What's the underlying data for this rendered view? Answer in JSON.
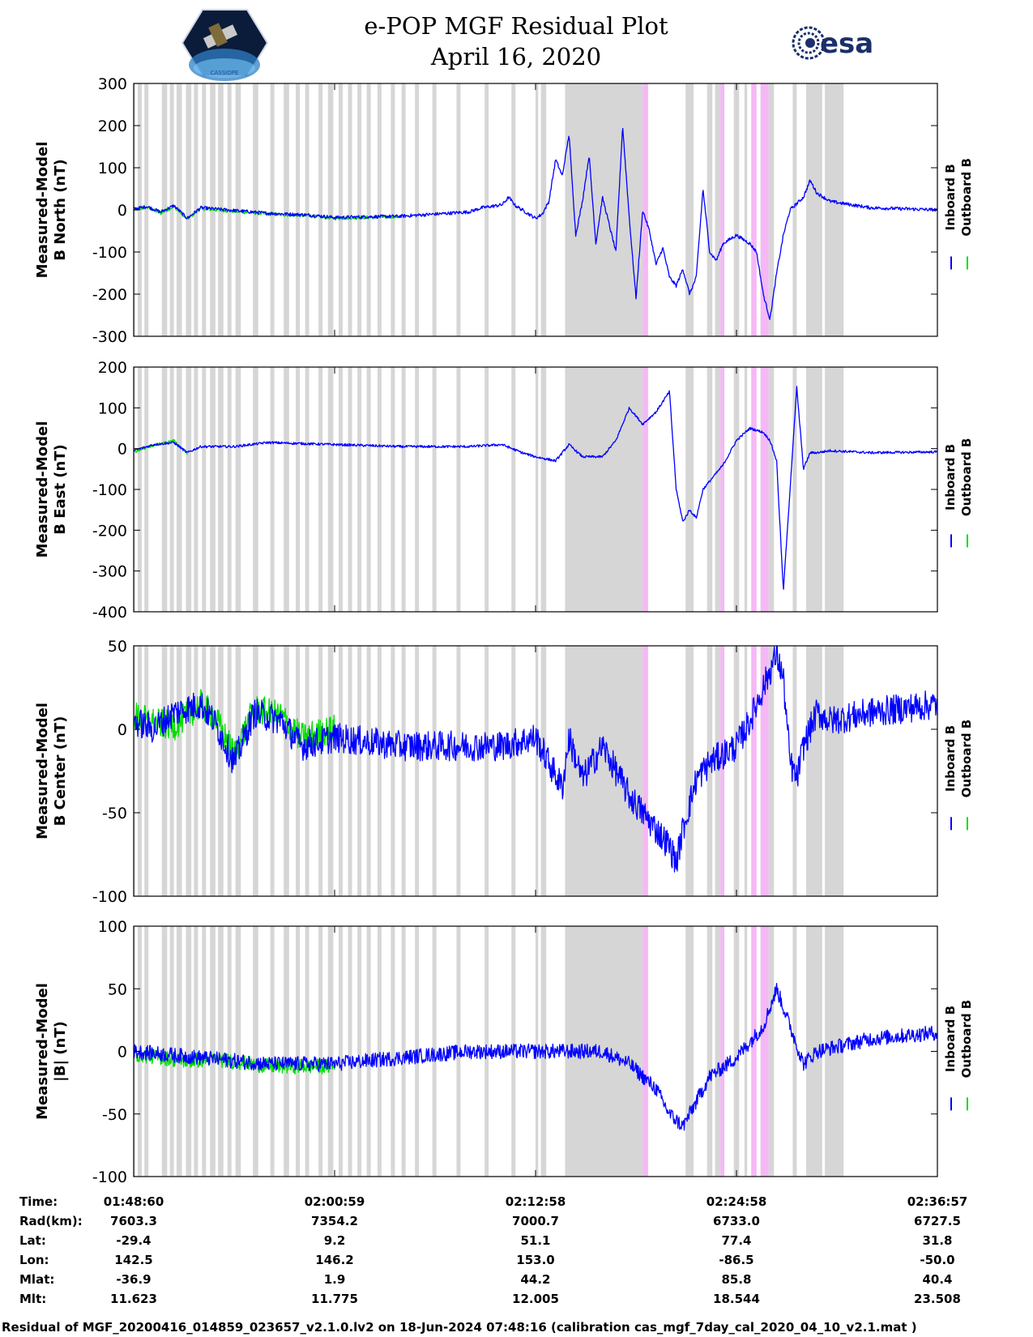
{
  "header": {
    "title_line1": "e-POP MGF Residual Plot",
    "title_line2": "April 16, 2020",
    "left_logo": "cassiope-satellite-logo",
    "left_logo_text": "CASSIOPE",
    "right_logo": "esa-logo",
    "right_logo_text": "esa"
  },
  "colors": {
    "inboard": "#0000ff",
    "outboard": "#00dd00",
    "gap_gray": "#d6d6d6",
    "gap_pink": "#f5b8f5"
  },
  "chart_data": [
    {
      "type": "line",
      "id": "north",
      "ylabel_line1": "Measured-Model",
      "ylabel_line2": "B North (nT)",
      "ylim": [
        -300,
        300
      ],
      "yticks": [
        "300",
        "200",
        "100",
        "0",
        "-100",
        "-200",
        "-300"
      ],
      "series": [
        {
          "name": "Inboard B",
          "color": "#0000ff",
          "noise": 4,
          "points": [
            [
              0,
              2
            ],
            [
              2,
              8
            ],
            [
              4,
              -5
            ],
            [
              6,
              10
            ],
            [
              8,
              -20
            ],
            [
              10,
              5
            ],
            [
              20,
              -8
            ],
            [
              26,
              -12
            ],
            [
              30,
              -18
            ],
            [
              40,
              -15
            ],
            [
              45,
              -10
            ],
            [
              50,
              -5
            ],
            [
              52,
              5
            ],
            [
              55,
              12
            ],
            [
              56,
              30
            ],
            [
              57,
              10
            ],
            [
              58,
              0
            ],
            [
              60,
              -20
            ],
            [
              61,
              -10
            ],
            [
              62,
              20
            ],
            [
              63,
              120
            ],
            [
              64,
              80
            ],
            [
              65,
              180
            ],
            [
              66,
              -60
            ],
            [
              67,
              20
            ],
            [
              68,
              130
            ],
            [
              69,
              -80
            ],
            [
              70,
              30
            ],
            [
              72,
              -100
            ],
            [
              73,
              200
            ],
            [
              74,
              -20
            ],
            [
              75,
              -210
            ],
            [
              76,
              0
            ],
            [
              77,
              -50
            ],
            [
              78,
              -130
            ],
            [
              79,
              -90
            ],
            [
              80,
              -160
            ],
            [
              81,
              -180
            ],
            [
              82,
              -140
            ],
            [
              83,
              -200
            ],
            [
              84,
              -160
            ],
            [
              85,
              50
            ],
            [
              86,
              -100
            ],
            [
              87,
              -120
            ],
            [
              88,
              -80
            ],
            [
              90,
              -60
            ],
            [
              92,
              -80
            ],
            [
              93,
              -100
            ],
            [
              94,
              -200
            ],
            [
              95,
              -260
            ],
            [
              96,
              -150
            ],
            [
              97,
              -60
            ],
            [
              98,
              0
            ],
            [
              100,
              30
            ],
            [
              101,
              70
            ],
            [
              102,
              40
            ],
            [
              104,
              20
            ],
            [
              110,
              5
            ],
            [
              120,
              0
            ]
          ]
        },
        {
          "name": "Outboard B",
          "color": "#00dd00",
          "noise": 4,
          "points": [
            [
              0,
              0
            ],
            [
              2,
              6
            ],
            [
              4,
              -8
            ],
            [
              6,
              8
            ],
            [
              8,
              -22
            ],
            [
              10,
              3
            ],
            [
              20,
              -10
            ],
            [
              26,
              -14
            ],
            [
              30,
              -20
            ],
            [
              40,
              -16
            ]
          ]
        }
      ]
    },
    {
      "type": "line",
      "id": "east",
      "ylabel_line1": "Measured-Model",
      "ylabel_line2": "B East (nT)",
      "ylim": [
        -400,
        200
      ],
      "yticks": [
        "200",
        "100",
        "0",
        "-100",
        "-200",
        "-300",
        "-400"
      ],
      "series": [
        {
          "name": "Inboard B",
          "color": "#0000ff",
          "noise": 3,
          "points": [
            [
              0,
              -5
            ],
            [
              3,
              10
            ],
            [
              6,
              15
            ],
            [
              8,
              -10
            ],
            [
              10,
              5
            ],
            [
              15,
              5
            ],
            [
              20,
              15
            ],
            [
              30,
              10
            ],
            [
              40,
              5
            ],
            [
              50,
              5
            ],
            [
              55,
              10
            ],
            [
              58,
              -10
            ],
            [
              60,
              -20
            ],
            [
              63,
              -30
            ],
            [
              65,
              10
            ],
            [
              67,
              -20
            ],
            [
              70,
              -20
            ],
            [
              72,
              20
            ],
            [
              74,
              100
            ],
            [
              76,
              60
            ],
            [
              78,
              90
            ],
            [
              80,
              140
            ],
            [
              81,
              -100
            ],
            [
              82,
              -180
            ],
            [
              83,
              -150
            ],
            [
              84,
              -170
            ],
            [
              85,
              -100
            ],
            [
              86,
              -80
            ],
            [
              87,
              -60
            ],
            [
              88,
              -40
            ],
            [
              90,
              20
            ],
            [
              92,
              50
            ],
            [
              94,
              40
            ],
            [
              95,
              20
            ],
            [
              96,
              -30
            ],
            [
              97,
              -350
            ],
            [
              98,
              -100
            ],
            [
              99,
              150
            ],
            [
              100,
              -50
            ],
            [
              101,
              -10
            ],
            [
              102,
              -10
            ],
            [
              104,
              -5
            ],
            [
              110,
              -10
            ],
            [
              120,
              -8
            ]
          ]
        },
        {
          "name": "Outboard B",
          "color": "#00dd00",
          "noise": 3,
          "points": [
            [
              0,
              -8
            ],
            [
              3,
              8
            ],
            [
              6,
              20
            ],
            [
              8,
              -12
            ]
          ]
        }
      ]
    },
    {
      "type": "line",
      "id": "center",
      "ylabel_line1": "Measured-Model",
      "ylabel_line2": "B Center (nT)",
      "ylim": [
        -100,
        50
      ],
      "yticks": [
        "50",
        "0",
        "-50",
        "-100"
      ],
      "series": [
        {
          "name": "Inboard B",
          "color": "#0000ff",
          "noise": 9,
          "points": [
            [
              0,
              5
            ],
            [
              3,
              0
            ],
            [
              6,
              10
            ],
            [
              10,
              15
            ],
            [
              12,
              5
            ],
            [
              15,
              -20
            ],
            [
              18,
              10
            ],
            [
              22,
              5
            ],
            [
              25,
              -10
            ],
            [
              30,
              -5
            ],
            [
              40,
              -10
            ],
            [
              50,
              -10
            ],
            [
              55,
              -10
            ],
            [
              60,
              -5
            ],
            [
              62,
              -20
            ],
            [
              64,
              -35
            ],
            [
              65,
              -5
            ],
            [
              67,
              -30
            ],
            [
              70,
              -10
            ],
            [
              72,
              -25
            ],
            [
              74,
              -40
            ],
            [
              76,
              -50
            ],
            [
              78,
              -60
            ],
            [
              80,
              -70
            ],
            [
              81,
              -80
            ],
            [
              82,
              -60
            ],
            [
              84,
              -30
            ],
            [
              86,
              -20
            ],
            [
              90,
              -10
            ],
            [
              92,
              5
            ],
            [
              94,
              25
            ],
            [
              96,
              45
            ],
            [
              97,
              30
            ],
            [
              98,
              -20
            ],
            [
              99,
              -30
            ],
            [
              100,
              -10
            ],
            [
              102,
              10
            ],
            [
              104,
              5
            ],
            [
              110,
              10
            ],
            [
              120,
              15
            ]
          ]
        },
        {
          "name": "Outboard B",
          "color": "#00dd00",
          "noise": 9,
          "points": [
            [
              0,
              8
            ],
            [
              3,
              4
            ],
            [
              6,
              2
            ],
            [
              10,
              15
            ],
            [
              12,
              8
            ],
            [
              15,
              -15
            ],
            [
              18,
              12
            ],
            [
              22,
              8
            ],
            [
              25,
              -5
            ],
            [
              30,
              0
            ]
          ]
        }
      ]
    },
    {
      "type": "line",
      "id": "total",
      "ylabel_line1": "Measured-Model",
      "ylabel_line2": "|B| (nT)",
      "ylim": [
        -100,
        100
      ],
      "yticks": [
        "100",
        "50",
        "0",
        "-50",
        "-100"
      ],
      "series": [
        {
          "name": "Inboard B",
          "color": "#0000ff",
          "noise": 6,
          "points": [
            [
              0,
              0
            ],
            [
              10,
              -5
            ],
            [
              20,
              -10
            ],
            [
              30,
              -10
            ],
            [
              40,
              -5
            ],
            [
              50,
              0
            ],
            [
              60,
              0
            ],
            [
              70,
              0
            ],
            [
              74,
              -10
            ],
            [
              78,
              -30
            ],
            [
              80,
              -50
            ],
            [
              82,
              -60
            ],
            [
              84,
              -40
            ],
            [
              86,
              -20
            ],
            [
              90,
              -5
            ],
            [
              94,
              20
            ],
            [
              96,
              50
            ],
            [
              98,
              20
            ],
            [
              100,
              -10
            ],
            [
              102,
              0
            ],
            [
              110,
              10
            ],
            [
              120,
              15
            ]
          ]
        },
        {
          "name": "Outboard B",
          "color": "#00dd00",
          "noise": 6,
          "points": [
            [
              0,
              -2
            ],
            [
              4,
              -5
            ],
            [
              8,
              -8
            ],
            [
              12,
              -6
            ],
            [
              20,
              -12
            ],
            [
              30,
              -12
            ]
          ]
        }
      ]
    }
  ],
  "x_axis": {
    "xlim": [
      0,
      120
    ],
    "gaps_gray": [
      [
        0,
        0.2
      ],
      [
        0.6,
        1.2
      ],
      [
        1.6,
        2.2
      ],
      [
        4.2,
        5.0
      ],
      [
        5.4,
        6.0
      ],
      [
        6.4,
        7.2
      ],
      [
        7.8,
        8.6
      ],
      [
        9.0,
        9.6
      ],
      [
        10.2,
        10.8
      ],
      [
        11.4,
        12.2
      ],
      [
        12.6,
        13.4
      ],
      [
        14.0,
        14.6
      ],
      [
        15.2,
        16.0
      ],
      [
        17.8,
        18.6
      ],
      [
        20.4,
        21.0
      ],
      [
        22.4,
        23.2
      ],
      [
        24.2,
        24.8
      ],
      [
        25.6,
        26.2
      ],
      [
        27.6,
        28.2
      ],
      [
        29.0,
        29.8
      ],
      [
        30.6,
        31.2
      ],
      [
        32.0,
        32.6
      ],
      [
        33.4,
        34.0
      ],
      [
        34.8,
        35.4
      ],
      [
        36.4,
        37.0
      ],
      [
        38.4,
        39.0
      ],
      [
        40.0,
        40.6
      ],
      [
        42.0,
        42.6
      ],
      [
        44.6,
        45.2
      ],
      [
        48.2,
        48.8
      ],
      [
        52.4,
        53.0
      ],
      [
        56.4,
        57.0
      ],
      [
        60.0,
        60.4
      ],
      [
        60.8,
        61.6
      ],
      [
        64.4,
        76.0
      ],
      [
        82.4,
        83.6
      ],
      [
        85.6,
        86.4
      ],
      [
        86.8,
        87.6
      ],
      [
        89.6,
        90.4
      ],
      [
        91.2,
        91.6
      ],
      [
        93.6,
        94.0
      ],
      [
        94.8,
        95.6
      ],
      [
        98.4,
        99.0
      ],
      [
        100.4,
        102.8
      ],
      [
        103.2,
        106.0
      ]
    ],
    "gaps_pink": [
      [
        76.0,
        76.8
      ],
      [
        87.6,
        88.2
      ],
      [
        92.2,
        93.0
      ],
      [
        93.6,
        94.8
      ]
    ]
  },
  "legend": {
    "inboard_label": "Inboard B",
    "outboard_label": "Outboard B",
    "glyph": "|"
  },
  "info_table": {
    "row_labels": [
      "Time:",
      "Rad(km):",
      "Lat:",
      "Lon:",
      "Mlat:",
      "Mlt:"
    ],
    "columns": [
      [
        "01:48:60",
        "7603.3",
        "-29.4",
        "142.5",
        "-36.9",
        "11.623"
      ],
      [
        "02:00:59",
        "7354.2",
        "9.2",
        "146.2",
        "1.9",
        "11.775"
      ],
      [
        "02:12:58",
        "7000.7",
        "51.1",
        "153.0",
        "44.2",
        "12.005"
      ],
      [
        "02:24:58",
        "6733.0",
        "77.4",
        "-86.5",
        "85.8",
        "18.544"
      ],
      [
        "02:36:57",
        "6727.5",
        "31.8",
        "-50.0",
        "40.4",
        "23.508"
      ]
    ]
  },
  "footer": "Residual of MGF_20200416_014859_023657_v2.1.0.lv2 on 18-Jun-2024 07:48:16 (calibration cas_mgf_7day_cal_2020_04_10_v2.1.mat )"
}
